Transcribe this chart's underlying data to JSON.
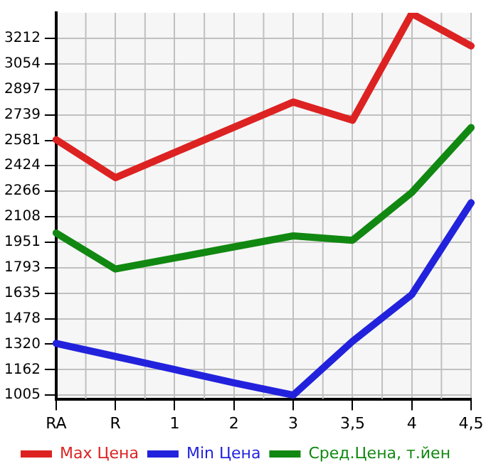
{
  "chart_data": {
    "type": "line",
    "categories": [
      "RA",
      "R",
      "1",
      "2",
      "3",
      "3,5",
      "4",
      "4,5"
    ],
    "series": [
      {
        "name": "Max Цена",
        "color": "#dd2222",
        "values": [
          2585,
          2350,
          2506,
          2662,
          2818,
          2705,
          3365,
          3165
        ]
      },
      {
        "name": "Min Цена",
        "color": "#2222dd",
        "values": [
          1325,
          1244,
          1163,
          1081,
          1005,
          1338,
          1627,
          2195
        ]
      },
      {
        "name": "Сред.Цена, т.йен",
        "color": "#118811",
        "values": [
          2008,
          1785,
          1853,
          1922,
          1990,
          1963,
          2259,
          2660
        ]
      }
    ],
    "ylim": [
      981,
      3370
    ],
    "yticks": [
      1005,
      1162,
      1320,
      1478,
      1635,
      1793,
      1951,
      2108,
      2266,
      2424,
      2581,
      2739,
      2897,
      3054,
      3212
    ],
    "grid": true,
    "legend": "bottom",
    "marker": "none",
    "line_style": "solid"
  }
}
